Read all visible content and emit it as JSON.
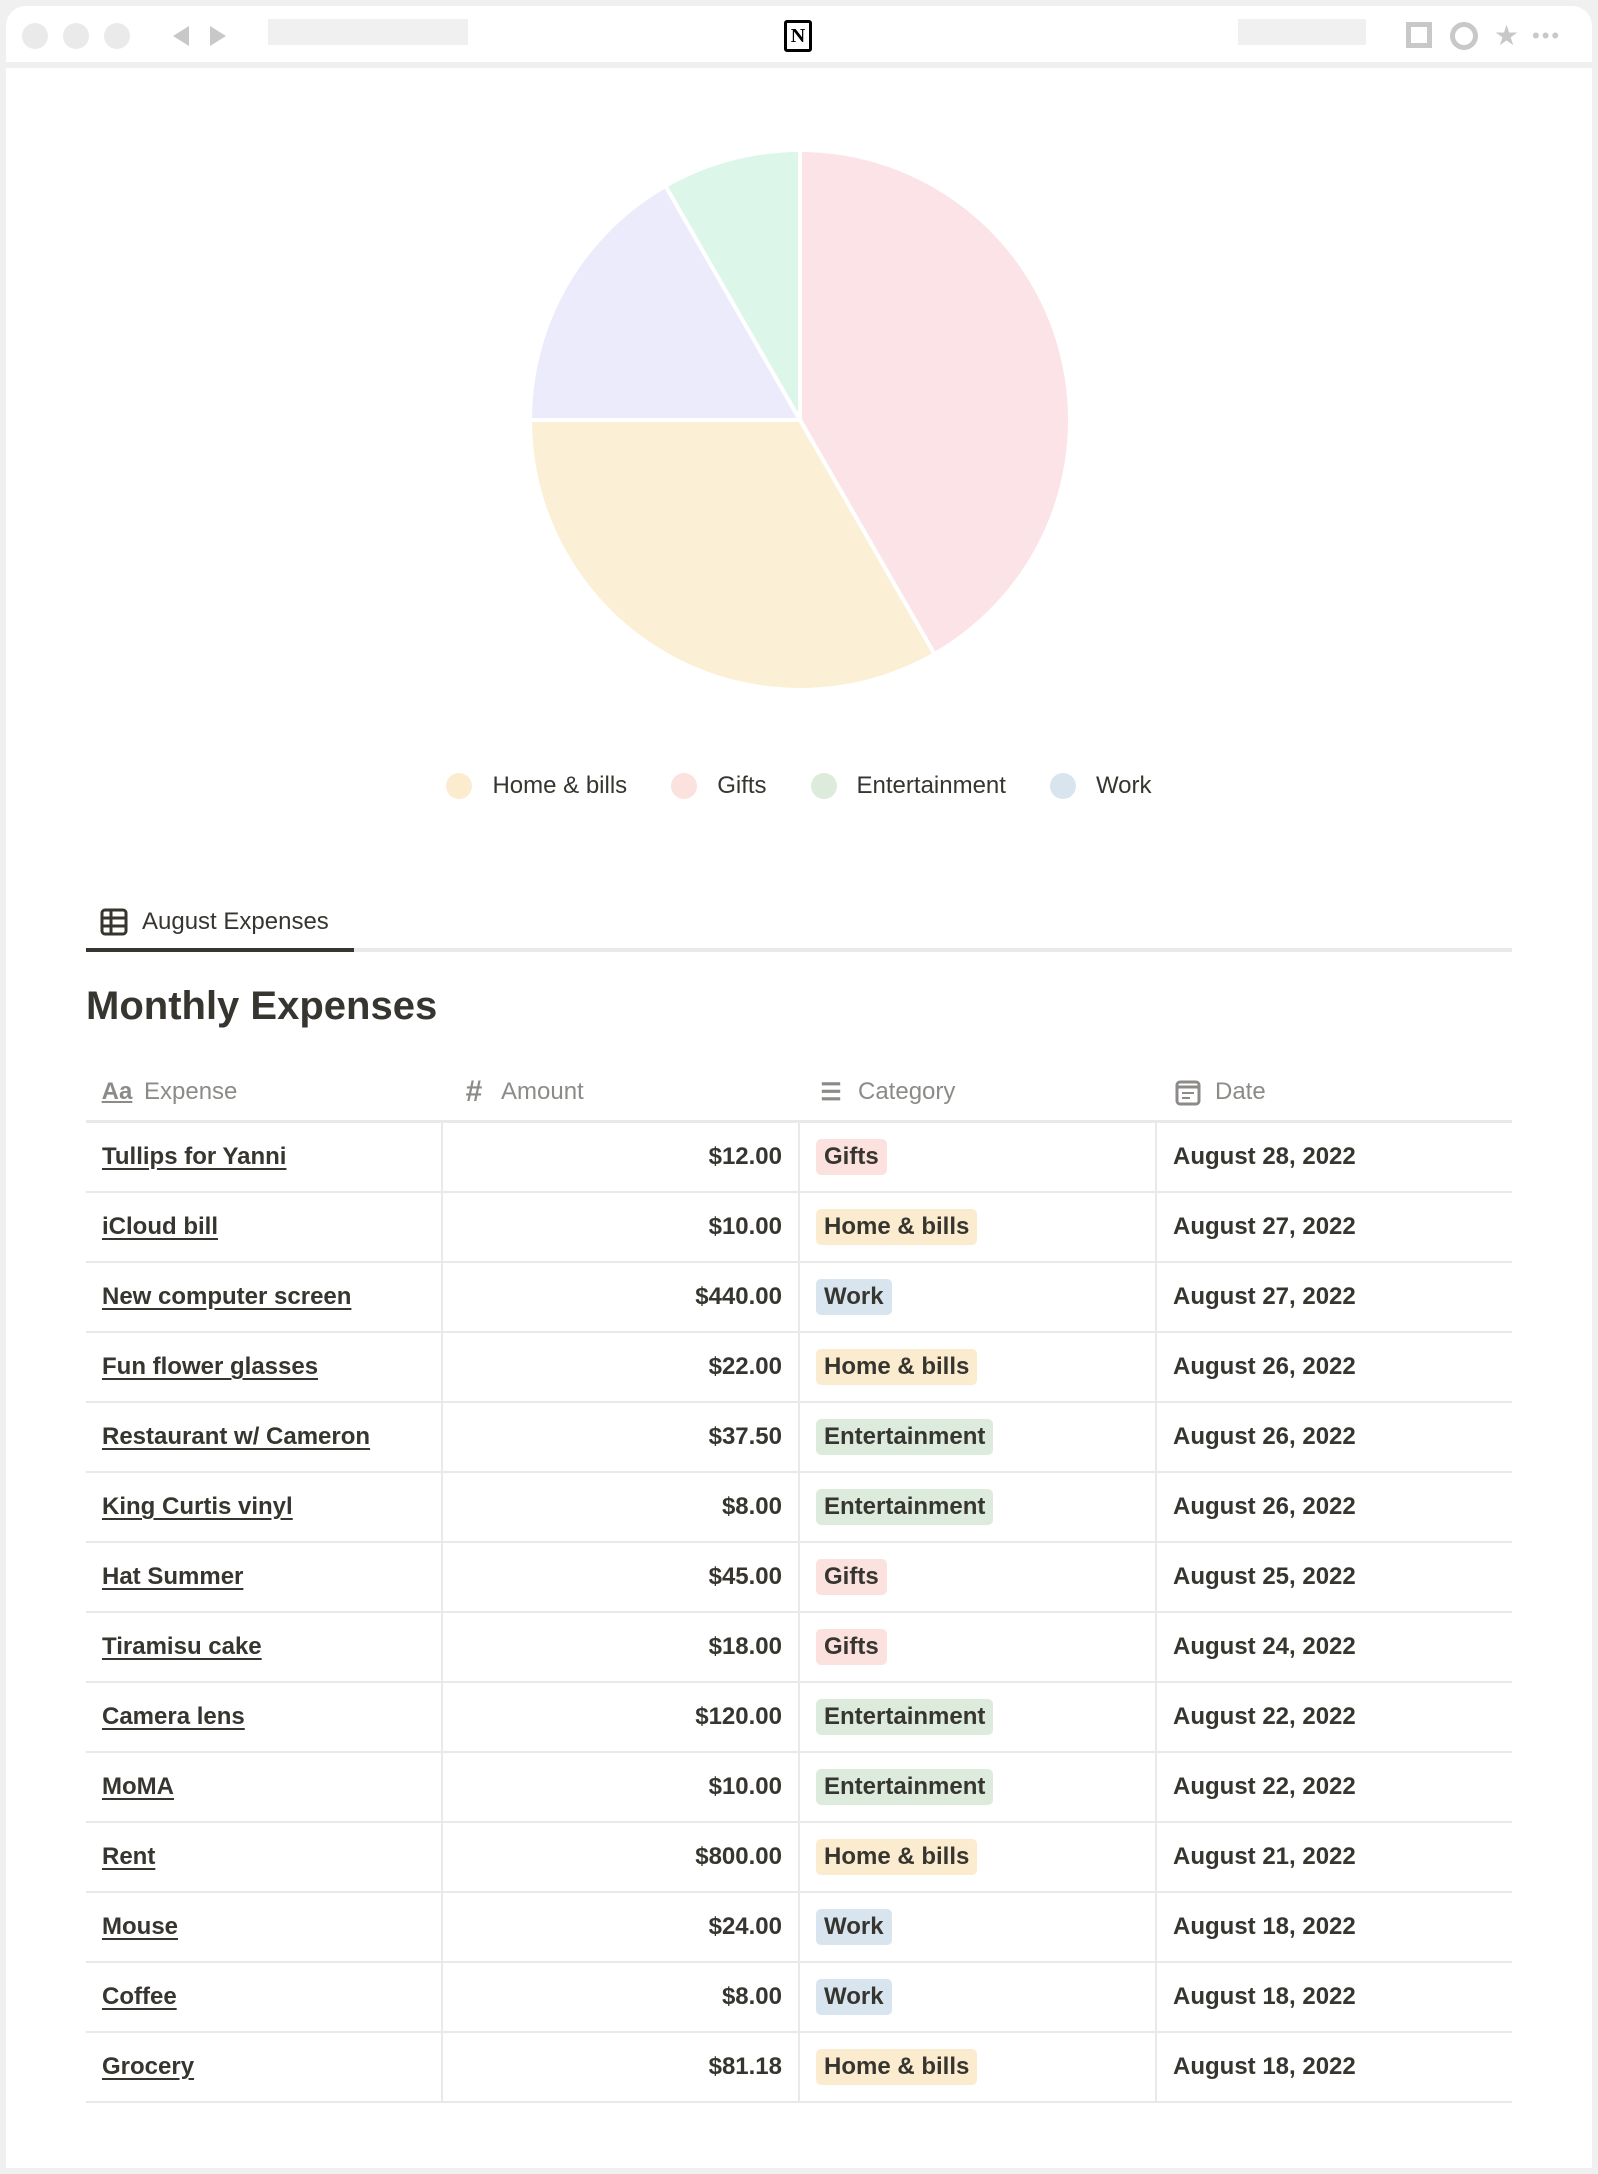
{
  "browser": {
    "logo_letter": "N"
  },
  "chart_data": {
    "type": "pie",
    "title": "",
    "slices": [
      {
        "name": "Gifts",
        "value": 41.7,
        "color": "#fbe3e7"
      },
      {
        "name": "Home & bills",
        "value": 33.3,
        "color": "#fbf0d5"
      },
      {
        "name": "Work",
        "value": 16.7,
        "color": "#ecebfc"
      },
      {
        "name": "Entertainment",
        "value": 8.3,
        "color": "#dcf6ea"
      }
    ],
    "legend_position": "bottom",
    "legend": [
      {
        "label": "Home & bills",
        "color": "#fbecd0"
      },
      {
        "label": "Gifts",
        "color": "#fbe2df"
      },
      {
        "label": "Entertainment",
        "color": "#ddebdc"
      },
      {
        "label": "Work",
        "color": "#d8e5ef"
      }
    ]
  },
  "tab": {
    "label": "August Expenses"
  },
  "title": "Monthly Expenses",
  "columns": [
    "Expense",
    "Amount",
    "Category",
    "Date"
  ],
  "category_colors": {
    "Gifts": "#fbe2df",
    "Home & bills": "#fbecd0",
    "Work": "#d8e5ef",
    "Entertainment": "#ddebdc"
  },
  "rows": [
    {
      "expense": "Tullips for Yanni",
      "amount": "$12.00",
      "category": "Gifts",
      "date": "August 28, 2022"
    },
    {
      "expense": "iCloud bill",
      "amount": "$10.00",
      "category": "Home & bills",
      "date": "August 27, 2022"
    },
    {
      "expense": "New computer screen",
      "amount": "$440.00",
      "category": "Work",
      "date": "August 27, 2022"
    },
    {
      "expense": "Fun flower glasses",
      "amount": "$22.00",
      "category": "Home & bills",
      "date": "August 26, 2022"
    },
    {
      "expense": "Restaurant w/ Cameron",
      "amount": "$37.50",
      "category": "Entertainment",
      "date": "August 26, 2022"
    },
    {
      "expense": "King Curtis vinyl",
      "amount": "$8.00",
      "category": "Entertainment",
      "date": "August 26, 2022"
    },
    {
      "expense": "Hat Summer",
      "amount": "$45.00",
      "category": "Gifts",
      "date": "August 25, 2022"
    },
    {
      "expense": "Tiramisu cake",
      "amount": "$18.00",
      "category": "Gifts",
      "date": "August 24, 2022"
    },
    {
      "expense": "Camera lens",
      "amount": "$120.00",
      "category": "Entertainment",
      "date": "August 22, 2022"
    },
    {
      "expense": "MoMA",
      "amount": "$10.00",
      "category": "Entertainment",
      "date": "August 22, 2022"
    },
    {
      "expense": "Rent",
      "amount": "$800.00",
      "category": "Home & bills",
      "date": "August 21, 2022"
    },
    {
      "expense": "Mouse",
      "amount": "$24.00",
      "category": "Work",
      "date": "August 18, 2022"
    },
    {
      "expense": "Coffee",
      "amount": "$8.00",
      "category": "Work",
      "date": "August 18, 2022"
    },
    {
      "expense": "Grocery",
      "amount": "$81.18",
      "category": "Home & bills",
      "date": "August 18, 2022"
    }
  ]
}
